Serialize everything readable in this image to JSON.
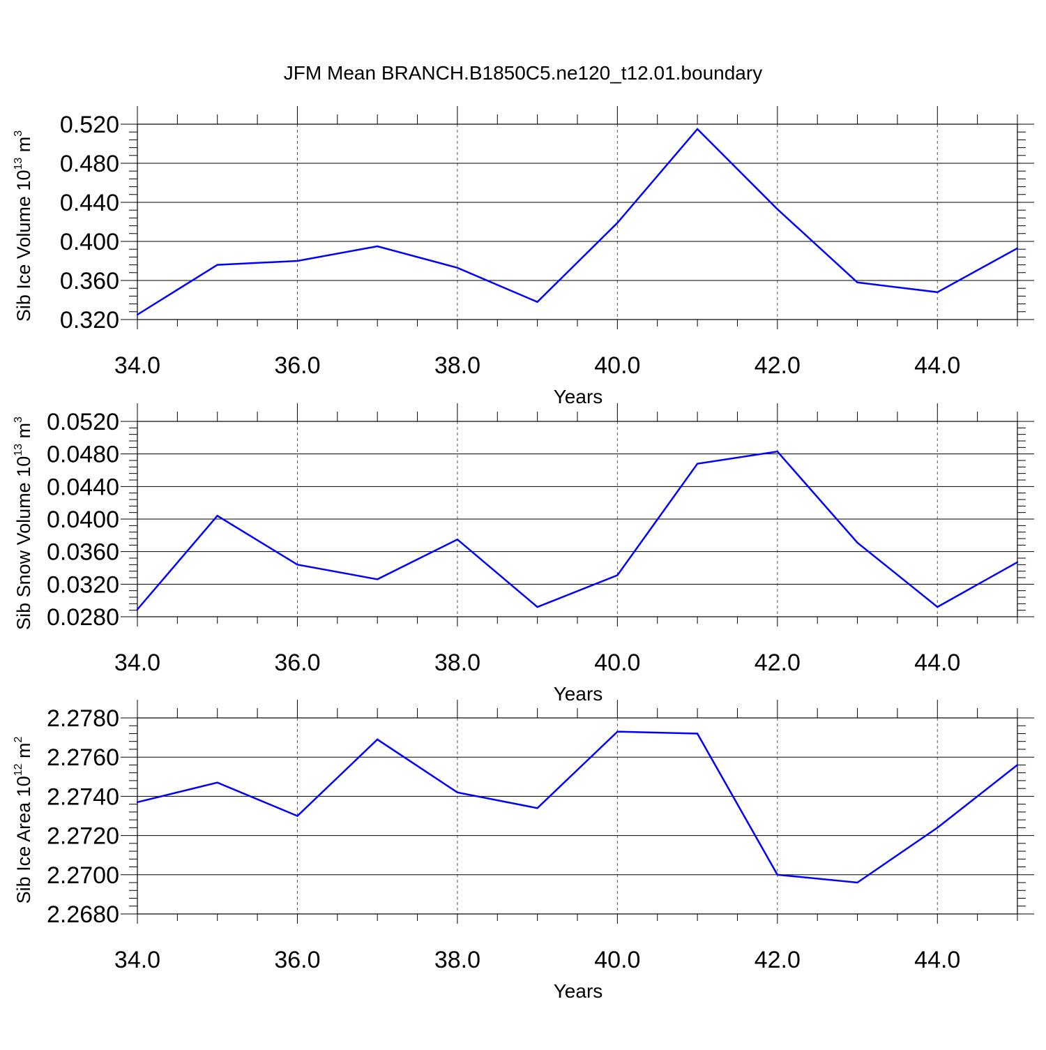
{
  "title": "JFM Mean BRANCH.B1850C5.ne120_t12.01.boundary",
  "line_color": "#0000ff",
  "chart_data": [
    {
      "type": "line",
      "xlabel": "Years",
      "ylabel_parts": [
        "Sib Ice Volume 10",
        "13",
        " m",
        "3"
      ],
      "xlim": [
        34,
        45
      ],
      "ylim": [
        0.32,
        0.52
      ],
      "xticks": [
        34,
        36,
        38,
        40,
        42,
        44
      ],
      "xtick_labels": [
        "34.0",
        "36.0",
        "38.0",
        "40.0",
        "42.0",
        "44.0"
      ],
      "yticks": [
        0.32,
        0.36,
        0.4,
        0.44,
        0.48,
        0.52
      ],
      "ytick_labels": [
        "0.320",
        "0.360",
        "0.400",
        "0.440",
        "0.480",
        "0.520"
      ],
      "grid": "x dashed",
      "x": [
        34,
        35,
        36,
        37,
        38,
        39,
        40,
        41,
        42,
        43,
        44,
        45
      ],
      "y": [
        0.325,
        0.376,
        0.38,
        0.395,
        0.373,
        0.338,
        0.419,
        0.515,
        0.433,
        0.358,
        0.348,
        0.393
      ]
    },
    {
      "type": "line",
      "xlabel": "Years",
      "ylabel_parts": [
        "Sib Snow Volume 10",
        "13",
        " m",
        "3"
      ],
      "xlim": [
        34,
        45
      ],
      "ylim": [
        0.028,
        0.052
      ],
      "xticks": [
        34,
        36,
        38,
        40,
        42,
        44
      ],
      "xtick_labels": [
        "34.0",
        "36.0",
        "38.0",
        "40.0",
        "42.0",
        "44.0"
      ],
      "yticks": [
        0.028,
        0.032,
        0.036,
        0.04,
        0.044,
        0.048,
        0.052
      ],
      "ytick_labels": [
        "0.0280",
        "0.0320",
        "0.0360",
        "0.0400",
        "0.0440",
        "0.0480",
        "0.0520"
      ],
      "grid": "x dashed",
      "x": [
        34,
        35,
        36,
        37,
        38,
        39,
        40,
        41,
        42,
        43,
        44,
        45
      ],
      "y": [
        0.0289,
        0.0404,
        0.0344,
        0.0326,
        0.0375,
        0.0292,
        0.0331,
        0.0468,
        0.0483,
        0.0371,
        0.0292,
        0.0347
      ]
    },
    {
      "type": "line",
      "xlabel": "Years",
      "ylabel_parts": [
        "Sib Ice Area 10",
        "12",
        " m",
        "2"
      ],
      "xlim": [
        34,
        45
      ],
      "ylim": [
        2.268,
        2.278
      ],
      "xticks": [
        34,
        36,
        38,
        40,
        42,
        44
      ],
      "xtick_labels": [
        "34.0",
        "36.0",
        "38.0",
        "40.0",
        "42.0",
        "44.0"
      ],
      "yticks": [
        2.268,
        2.27,
        2.272,
        2.274,
        2.276,
        2.278
      ],
      "ytick_labels": [
        "2.2680",
        "2.2700",
        "2.2720",
        "2.2740",
        "2.2760",
        "2.2780"
      ],
      "grid": "x dashed",
      "x": [
        34,
        35,
        36,
        37,
        38,
        39,
        40,
        41,
        42,
        43,
        44,
        45
      ],
      "y": [
        2.2737,
        2.2747,
        2.273,
        2.2769,
        2.2742,
        2.2734,
        2.2773,
        2.2772,
        2.27,
        2.2696,
        2.2724,
        2.2756
      ]
    }
  ]
}
